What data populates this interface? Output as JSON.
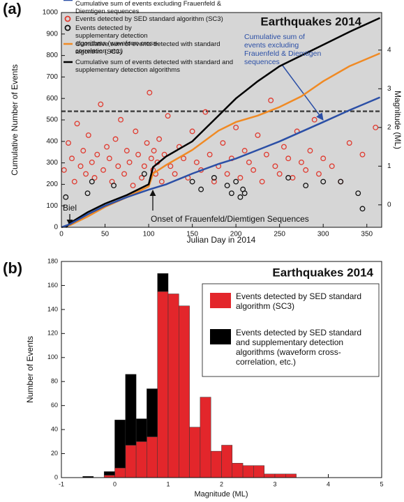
{
  "chart_data": [
    {
      "type": "scatter",
      "panel_label": "(a)",
      "title": "Earthquakes 2014",
      "xlabel": "Julian Day in 2014",
      "ylabel": "Cumulative Number of Events",
      "y2label": "Magnitude (ML)",
      "xlim": [
        0,
        367
      ],
      "xticks": [
        0,
        50,
        100,
        150,
        200,
        250,
        300,
        350
      ],
      "ylim": [
        0,
        1000
      ],
      "yticks": [
        0,
        100,
        200,
        300,
        400,
        500,
        600,
        700,
        800,
        900,
        1000
      ],
      "y2lim": [
        -0.58,
        4.97
      ],
      "y2ticks": [
        0,
        1,
        2,
        3,
        4
      ],
      "dashed_line": 540,
      "annotations": [
        {
          "text": "Cumulative sum of events excluding Frauenfeld & Diemtigen sequences",
          "color": "#2b4fa6"
        },
        {
          "text": "Biel"
        },
        {
          "text": "Onset of Frauenfeld/Diemtigen Sequences"
        }
      ],
      "series": [
        {
          "name": "Events detected by SED standard algorithm (SC3)",
          "color": "#e03a2f",
          "axis": "y2",
          "x": [
            3,
            8,
            12,
            15,
            18,
            22,
            25,
            28,
            31,
            35,
            38,
            41,
            45,
            48,
            52,
            55,
            58,
            62,
            65,
            68,
            72,
            75,
            78,
            82,
            85,
            88,
            92,
            95,
            98,
            101,
            103,
            105,
            106,
            108,
            110,
            112,
            115,
            118,
            122,
            125,
            130,
            135,
            140,
            145,
            150,
            155,
            160,
            165,
            170,
            175,
            180,
            185,
            190,
            195,
            200,
            205,
            210,
            215,
            220,
            225,
            230,
            235,
            240,
            245,
            250,
            255,
            260,
            265,
            270,
            275,
            280,
            285,
            290,
            295,
            300,
            310,
            320,
            330,
            345,
            360
          ],
          "values": [
            0.9,
            1.6,
            1.2,
            0.6,
            2.1,
            1.0,
            1.4,
            0.8,
            1.8,
            1.1,
            0.7,
            1.3,
            2.6,
            0.9,
            1.5,
            1.2,
            0.6,
            1.7,
            1.0,
            2.2,
            0.8,
            1.4,
            1.1,
            0.5,
            1.9,
            1.3,
            0.7,
            1.0,
            1.6,
            2.9,
            1.2,
            0.9,
            1.4,
            0.8,
            1.1,
            1.7,
            0.6,
            1.3,
            2.3,
            1.0,
            0.8,
            1.5,
            1.2,
            0.7,
            1.9,
            1.1,
            0.9,
            2.4,
            1.3,
            0.6,
            1.0,
            1.6,
            0.8,
            1.2,
            2.0,
            0.7,
            1.4,
            1.1,
            0.9,
            1.8,
            0.6,
            1.3,
            2.7,
            1.0,
            0.8,
            1.5,
            1.2,
            0.7,
            1.9,
            1.1,
            0.9,
            1.4,
            2.2,
            0.8,
            1.2,
            1.0,
            0.6,
            1.6,
            1.3,
            2.0
          ]
        },
        {
          "name": "Events detected by supplementary detection algorithms (waveform cross-correlation, etc.)",
          "color": "#111111",
          "axis": "y2",
          "x": [
            5,
            30,
            35,
            60,
            95,
            150,
            160,
            175,
            190,
            195,
            200,
            205,
            208,
            210,
            260,
            280,
            300,
            320,
            340,
            345
          ],
          "values": [
            0.2,
            0.3,
            0.6,
            0.5,
            0.8,
            0.6,
            0.4,
            0.7,
            0.5,
            0.3,
            0.6,
            0.2,
            0.4,
            0.3,
            0.7,
            0.5,
            0.6,
            0.6,
            0.3,
            -0.1
          ]
        },
        {
          "name": "Cumulative sum of events detected with standard algorithm (SC3)",
          "color": "#f08a24",
          "type": "line",
          "x": [
            0,
            10,
            30,
            50,
            75,
            100,
            105,
            120,
            150,
            180,
            200,
            225,
            250,
            275,
            300,
            330,
            365
          ],
          "values": [
            0,
            10,
            50,
            95,
            140,
            190,
            250,
            290,
            360,
            450,
            490,
            520,
            560,
            610,
            680,
            750,
            810
          ]
        },
        {
          "name": "Cumulative sum of events detected with standard and supplementary detection algorithms",
          "color": "#000000",
          "type": "line",
          "x": [
            5,
            10,
            30,
            50,
            75,
            100,
            105,
            120,
            150,
            180,
            200,
            225,
            250,
            275,
            300,
            330,
            365
          ],
          "values": [
            0,
            20,
            70,
            110,
            150,
            200,
            280,
            330,
            400,
            520,
            600,
            680,
            750,
            800,
            850,
            910,
            975
          ]
        },
        {
          "name": "Cumulative sum of events excluding Frauenfeld & Diemtigen sequences",
          "color": "#2b4fa6",
          "type": "line",
          "x": [
            0,
            10,
            30,
            50,
            75,
            100,
            120,
            150,
            180,
            200,
            225,
            250,
            275,
            300,
            330,
            365
          ],
          "values": [
            0,
            15,
            60,
            100,
            140,
            175,
            200,
            250,
            295,
            320,
            360,
            400,
            445,
            490,
            545,
            605
          ]
        }
      ]
    },
    {
      "type": "histogram",
      "panel_label": "(b)",
      "title": "Earthquakes 2014",
      "xlabel": "Magnitude (ML)",
      "ylabel": "Number of Events",
      "xlim": [
        -1,
        5
      ],
      "xticks": [
        -1,
        0,
        1,
        2,
        3,
        4,
        5
      ],
      "ylim": [
        0,
        180
      ],
      "yticks": [
        0,
        20,
        40,
        60,
        80,
        100,
        120,
        140,
        160,
        180
      ],
      "bins": [
        -0.6,
        -0.4,
        -0.2,
        0.0,
        0.2,
        0.4,
        0.6,
        0.8,
        1.0,
        1.2,
        1.4,
        1.6,
        1.8,
        2.0,
        2.2,
        2.4,
        2.6,
        2.8,
        3.0,
        3.2,
        3.4
      ],
      "series": [
        {
          "name": "Events detected by SED standard algorithm (SC3)",
          "color": "#e3262b",
          "values": [
            0,
            0,
            2,
            8,
            27,
            30,
            34,
            155,
            153,
            143,
            42,
            67,
            22,
            27,
            12,
            10,
            10,
            3,
            3,
            3
          ]
        },
        {
          "name": "Events detected by SED standard and supplementary detection algorithms (waveform cross-correlation, etc.)",
          "color": "#000000",
          "values": [
            1,
            0,
            3,
            40,
            59,
            19,
            40,
            15,
            0,
            0,
            0,
            0,
            0,
            0,
            0,
            0,
            0,
            0,
            0,
            0
          ]
        }
      ]
    }
  ]
}
